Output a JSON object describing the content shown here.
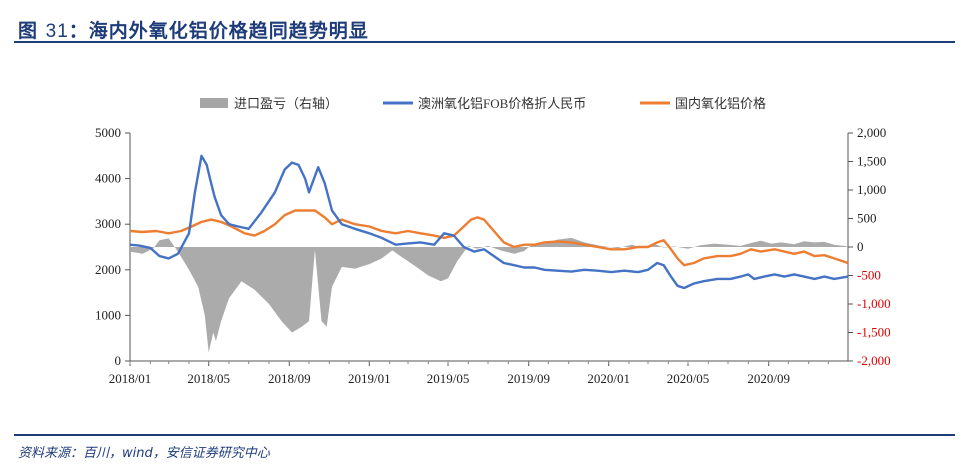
{
  "header": {
    "fig_label": "图",
    "fig_number": "31",
    "fig_title": "：海内外氧化铝价格趋同趋势明显"
  },
  "footer": {
    "source": "资料来源：百川，wind，安信证券研究中心"
  },
  "colors": {
    "title": "#1f3c7a",
    "import_profit": "#a6a6a6",
    "fob_rmb": "#4472c4",
    "domestic": "#ed7d31",
    "right_axis_negative": "#e00000"
  },
  "chart_data": {
    "type": "line",
    "legend": [
      "进口盈亏（右轴）",
      "澳洲氧化铝FOB价格折人民币",
      "国内氧化铝价格"
    ],
    "legend_position": "top",
    "grid": false,
    "x_tick_labels": [
      "2018/01",
      "2018/05",
      "2018/09",
      "2019/01",
      "2019/05",
      "2019/09",
      "2020/01",
      "2020/05",
      "2020/09"
    ],
    "x_range": [
      "2018-01-01",
      "2020-12-31"
    ],
    "y_left": {
      "ylim": [
        0,
        5000
      ],
      "ticks": [
        "0",
        "1000",
        "2000",
        "3000",
        "4000",
        "5000"
      ]
    },
    "y_right": {
      "ylim": [
        -2000,
        2000
      ],
      "ticks": [
        "2,000",
        "1,500",
        "1,000",
        "500",
        "0",
        "-500",
        "-1,000",
        "-1,500",
        "-2,000"
      ]
    },
    "series": [
      {
        "name": "进口盈亏（右轴）",
        "type": "area",
        "axis": "right",
        "points": [
          [
            "2018-01-01",
            -80
          ],
          [
            "2018-01-20",
            -120
          ],
          [
            "2018-02-05",
            -30
          ],
          [
            "2018-02-15",
            120
          ],
          [
            "2018-03-01",
            150
          ],
          [
            "2018-03-15",
            -80
          ],
          [
            "2018-04-01",
            -400
          ],
          [
            "2018-04-15",
            -700
          ],
          [
            "2018-04-25",
            -1200
          ],
          [
            "2018-05-01",
            -1850
          ],
          [
            "2018-05-08",
            -1500
          ],
          [
            "2018-05-12",
            -1650
          ],
          [
            "2018-05-20",
            -1300
          ],
          [
            "2018-06-01",
            -900
          ],
          [
            "2018-06-20",
            -600
          ],
          [
            "2018-07-10",
            -750
          ],
          [
            "2018-08-01",
            -1000
          ],
          [
            "2018-08-20",
            -1300
          ],
          [
            "2018-09-05",
            -1500
          ],
          [
            "2018-09-20",
            -1400
          ],
          [
            "2018-10-01",
            -1300
          ],
          [
            "2018-10-10",
            -50
          ],
          [
            "2018-10-20",
            -1300
          ],
          [
            "2018-10-28",
            -1400
          ],
          [
            "2018-11-05",
            -700
          ],
          [
            "2018-11-20",
            -350
          ],
          [
            "2018-12-10",
            -380
          ],
          [
            "2019-01-01",
            -300
          ],
          [
            "2019-01-20",
            -200
          ],
          [
            "2019-02-05",
            -60
          ],
          [
            "2019-02-20",
            -180
          ],
          [
            "2019-03-10",
            -320
          ],
          [
            "2019-04-01",
            -500
          ],
          [
            "2019-04-20",
            -600
          ],
          [
            "2019-05-01",
            -550
          ],
          [
            "2019-05-15",
            -250
          ],
          [
            "2019-06-01",
            20
          ],
          [
            "2019-06-15",
            -30
          ],
          [
            "2019-07-01",
            20
          ],
          [
            "2019-07-20",
            -60
          ],
          [
            "2019-08-10",
            -120
          ],
          [
            "2019-08-25",
            -70
          ],
          [
            "2019-09-05",
            30
          ],
          [
            "2019-09-25",
            60
          ],
          [
            "2019-10-15",
            130
          ],
          [
            "2019-11-05",
            160
          ],
          [
            "2019-11-25",
            80
          ],
          [
            "2019-12-20",
            20
          ],
          [
            "2020-01-15",
            -20
          ],
          [
            "2020-02-05",
            40
          ],
          [
            "2020-02-25",
            -20
          ],
          [
            "2020-03-10",
            60
          ],
          [
            "2020-03-25",
            -10
          ],
          [
            "2020-04-10",
            10
          ],
          [
            "2020-05-01",
            -30
          ],
          [
            "2020-05-20",
            30
          ],
          [
            "2020-06-10",
            60
          ],
          [
            "2020-07-01",
            40
          ],
          [
            "2020-07-20",
            20
          ],
          [
            "2020-08-05",
            70
          ],
          [
            "2020-08-20",
            110
          ],
          [
            "2020-09-05",
            60
          ],
          [
            "2020-09-20",
            80
          ],
          [
            "2020-10-10",
            50
          ],
          [
            "2020-10-25",
            100
          ],
          [
            "2020-11-10",
            80
          ],
          [
            "2020-11-25",
            90
          ],
          [
            "2020-12-10",
            40
          ],
          [
            "2020-12-31",
            10
          ]
        ]
      },
      {
        "name": "澳洲氧化铝FOB价格折人民币",
        "type": "line",
        "axis": "left",
        "points": [
          [
            "2018-01-01",
            2550
          ],
          [
            "2018-01-15",
            2530
          ],
          [
            "2018-02-01",
            2480
          ],
          [
            "2018-02-15",
            2300
          ],
          [
            "2018-03-01",
            2250
          ],
          [
            "2018-03-15",
            2350
          ],
          [
            "2018-04-01",
            2800
          ],
          [
            "2018-04-10",
            3700
          ],
          [
            "2018-04-20",
            4500
          ],
          [
            "2018-04-28",
            4300
          ],
          [
            "2018-05-03",
            4000
          ],
          [
            "2018-05-10",
            3600
          ],
          [
            "2018-05-20",
            3200
          ],
          [
            "2018-06-01",
            3000
          ],
          [
            "2018-06-15",
            2950
          ],
          [
            "2018-07-01",
            2900
          ],
          [
            "2018-07-20",
            3250
          ],
          [
            "2018-08-10",
            3700
          ],
          [
            "2018-08-25",
            4200
          ],
          [
            "2018-09-05",
            4350
          ],
          [
            "2018-09-15",
            4300
          ],
          [
            "2018-09-25",
            4000
          ],
          [
            "2018-10-01",
            3700
          ],
          [
            "2018-10-15",
            4250
          ],
          [
            "2018-10-25",
            3900
          ],
          [
            "2018-11-05",
            3300
          ],
          [
            "2018-11-20",
            3000
          ],
          [
            "2018-12-10",
            2900
          ],
          [
            "2019-01-01",
            2800
          ],
          [
            "2019-01-20",
            2700
          ],
          [
            "2019-02-10",
            2550
          ],
          [
            "2019-03-01",
            2580
          ],
          [
            "2019-03-20",
            2600
          ],
          [
            "2019-04-10",
            2550
          ],
          [
            "2019-04-25",
            2800
          ],
          [
            "2019-05-10",
            2750
          ],
          [
            "2019-05-25",
            2500
          ],
          [
            "2019-06-10",
            2400
          ],
          [
            "2019-06-25",
            2450
          ],
          [
            "2019-07-10",
            2300
          ],
          [
            "2019-07-25",
            2150
          ],
          [
            "2019-08-10",
            2100
          ],
          [
            "2019-08-25",
            2050
          ],
          [
            "2019-09-10",
            2050
          ],
          [
            "2019-09-25",
            2000
          ],
          [
            "2019-10-15",
            1980
          ],
          [
            "2019-11-05",
            1960
          ],
          [
            "2019-11-25",
            2000
          ],
          [
            "2019-12-15",
            1980
          ],
          [
            "2020-01-05",
            1950
          ],
          [
            "2020-01-25",
            1980
          ],
          [
            "2020-02-15",
            1950
          ],
          [
            "2020-03-01",
            2000
          ],
          [
            "2020-03-15",
            2150
          ],
          [
            "2020-03-25",
            2100
          ],
          [
            "2020-04-05",
            1850
          ],
          [
            "2020-04-15",
            1650
          ],
          [
            "2020-04-25",
            1600
          ],
          [
            "2020-05-10",
            1700
          ],
          [
            "2020-05-25",
            1750
          ],
          [
            "2020-06-15",
            1800
          ],
          [
            "2020-07-05",
            1800
          ],
          [
            "2020-07-20",
            1850
          ],
          [
            "2020-08-01",
            1900
          ],
          [
            "2020-08-10",
            1800
          ],
          [
            "2020-08-25",
            1850
          ],
          [
            "2020-09-10",
            1900
          ],
          [
            "2020-09-25",
            1850
          ],
          [
            "2020-10-10",
            1900
          ],
          [
            "2020-10-25",
            1850
          ],
          [
            "2020-11-10",
            1800
          ],
          [
            "2020-11-25",
            1850
          ],
          [
            "2020-12-10",
            1800
          ],
          [
            "2020-12-31",
            1850
          ]
        ]
      },
      {
        "name": "国内氧化铝价格",
        "type": "line",
        "axis": "left",
        "points": [
          [
            "2018-01-01",
            2850
          ],
          [
            "2018-01-20",
            2830
          ],
          [
            "2018-02-10",
            2850
          ],
          [
            "2018-03-01",
            2800
          ],
          [
            "2018-03-20",
            2850
          ],
          [
            "2018-04-05",
            2950
          ],
          [
            "2018-04-20",
            3050
          ],
          [
            "2018-05-05",
            3100
          ],
          [
            "2018-05-20",
            3050
          ],
          [
            "2018-06-05",
            2950
          ],
          [
            "2018-06-25",
            2800
          ],
          [
            "2018-07-10",
            2750
          ],
          [
            "2018-07-25",
            2850
          ],
          [
            "2018-08-10",
            3000
          ],
          [
            "2018-08-25",
            3200
          ],
          [
            "2018-09-10",
            3300
          ],
          [
            "2018-09-25",
            3300
          ],
          [
            "2018-10-10",
            3300
          ],
          [
            "2018-10-25",
            3150
          ],
          [
            "2018-11-05",
            3000
          ],
          [
            "2018-11-20",
            3100
          ],
          [
            "2018-12-10",
            3000
          ],
          [
            "2019-01-01",
            2950
          ],
          [
            "2019-01-20",
            2850
          ],
          [
            "2019-02-10",
            2800
          ],
          [
            "2019-03-01",
            2850
          ],
          [
            "2019-03-20",
            2800
          ],
          [
            "2019-04-10",
            2750
          ],
          [
            "2019-04-25",
            2700
          ],
          [
            "2019-05-10",
            2750
          ],
          [
            "2019-05-25",
            2950
          ],
          [
            "2019-06-05",
            3100
          ],
          [
            "2019-06-15",
            3150
          ],
          [
            "2019-06-25",
            3100
          ],
          [
            "2019-07-10",
            2850
          ],
          [
            "2019-07-25",
            2600
          ],
          [
            "2019-08-10",
            2500
          ],
          [
            "2019-08-25",
            2550
          ],
          [
            "2019-09-10",
            2550
          ],
          [
            "2019-09-25",
            2600
          ],
          [
            "2019-10-15",
            2620
          ],
          [
            "2019-11-05",
            2600
          ],
          [
            "2019-11-25",
            2550
          ],
          [
            "2019-12-15",
            2500
          ],
          [
            "2020-01-05",
            2450
          ],
          [
            "2020-01-25",
            2450
          ],
          [
            "2020-02-15",
            2500
          ],
          [
            "2020-03-01",
            2500
          ],
          [
            "2020-03-15",
            2600
          ],
          [
            "2020-03-25",
            2650
          ],
          [
            "2020-04-05",
            2450
          ],
          [
            "2020-04-15",
            2250
          ],
          [
            "2020-04-25",
            2100
          ],
          [
            "2020-05-10",
            2150
          ],
          [
            "2020-05-25",
            2250
          ],
          [
            "2020-06-15",
            2300
          ],
          [
            "2020-07-05",
            2300
          ],
          [
            "2020-07-20",
            2350
          ],
          [
            "2020-08-05",
            2450
          ],
          [
            "2020-08-20",
            2400
          ],
          [
            "2020-09-10",
            2450
          ],
          [
            "2020-09-25",
            2400
          ],
          [
            "2020-10-10",
            2350
          ],
          [
            "2020-10-25",
            2400
          ],
          [
            "2020-11-10",
            2300
          ],
          [
            "2020-11-25",
            2320
          ],
          [
            "2020-12-10",
            2250
          ],
          [
            "2020-12-31",
            2150
          ]
        ]
      }
    ]
  }
}
